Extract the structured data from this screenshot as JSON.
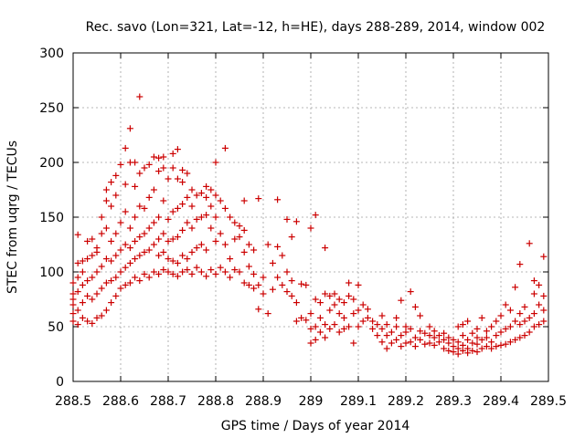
{
  "chart_data": {
    "type": "scatter",
    "title": "Rec. savo (Lon=321, Lat=-12, h=HE), days 288-289, 2014, window 002",
    "xlabel": "GPS time / Days of year 2014",
    "ylabel": "STEC from uqrg / TECUs",
    "xlim": [
      288.5,
      289.5
    ],
    "ylim": [
      0,
      300
    ],
    "xticks": [
      "288.5",
      "288.6",
      "288.7",
      "288.8",
      "288.9",
      "289",
      "289.1",
      "289.2",
      "289.3",
      "289.4",
      "289.5"
    ],
    "yticks": [
      "0",
      "50",
      "100",
      "150",
      "200",
      "250",
      "300"
    ],
    "grid": true,
    "marker": "+",
    "color": "#cc0000",
    "points": [
      [
        288.5,
        55
      ],
      [
        288.5,
        62
      ],
      [
        288.5,
        70
      ],
      [
        288.5,
        75
      ],
      [
        288.5,
        80
      ],
      [
        288.5,
        90
      ],
      [
        288.51,
        52
      ],
      [
        288.51,
        65
      ],
      [
        288.51,
        82
      ],
      [
        288.51,
        95
      ],
      [
        288.51,
        108
      ],
      [
        288.51,
        134
      ],
      [
        288.52,
        58
      ],
      [
        288.52,
        72
      ],
      [
        288.52,
        88
      ],
      [
        288.52,
        100
      ],
      [
        288.52,
        110
      ],
      [
        288.53,
        55
      ],
      [
        288.53,
        78
      ],
      [
        288.53,
        92
      ],
      [
        288.53,
        112
      ],
      [
        288.53,
        128
      ],
      [
        288.54,
        53
      ],
      [
        288.54,
        75
      ],
      [
        288.54,
        95
      ],
      [
        288.54,
        115
      ],
      [
        288.54,
        130
      ],
      [
        288.55,
        58
      ],
      [
        288.55,
        80
      ],
      [
        288.55,
        100
      ],
      [
        288.55,
        118
      ],
      [
        288.55,
        122
      ],
      [
        288.56,
        60
      ],
      [
        288.56,
        85
      ],
      [
        288.56,
        105
      ],
      [
        288.56,
        135
      ],
      [
        288.56,
        150
      ],
      [
        288.57,
        65
      ],
      [
        288.57,
        90
      ],
      [
        288.57,
        112
      ],
      [
        288.57,
        140
      ],
      [
        288.57,
        165
      ],
      [
        288.57,
        175
      ],
      [
        288.58,
        72
      ],
      [
        288.58,
        92
      ],
      [
        288.58,
        110
      ],
      [
        288.58,
        128
      ],
      [
        288.58,
        160
      ],
      [
        288.58,
        182
      ],
      [
        288.59,
        78
      ],
      [
        288.59,
        95
      ],
      [
        288.59,
        115
      ],
      [
        288.59,
        135
      ],
      [
        288.59,
        170
      ],
      [
        288.59,
        188
      ],
      [
        288.6,
        85
      ],
      [
        288.6,
        100
      ],
      [
        288.6,
        120
      ],
      [
        288.6,
        145
      ],
      [
        288.6,
        198
      ],
      [
        288.61,
        88
      ],
      [
        288.61,
        104
      ],
      [
        288.61,
        125
      ],
      [
        288.61,
        155
      ],
      [
        288.61,
        180
      ],
      [
        288.61,
        213
      ],
      [
        288.62,
        90
      ],
      [
        288.62,
        108
      ],
      [
        288.62,
        122
      ],
      [
        288.62,
        140
      ],
      [
        288.62,
        200
      ],
      [
        288.62,
        231
      ],
      [
        288.63,
        95
      ],
      [
        288.63,
        112
      ],
      [
        288.63,
        128
      ],
      [
        288.63,
        150
      ],
      [
        288.63,
        178
      ],
      [
        288.63,
        200
      ],
      [
        288.64,
        92
      ],
      [
        288.64,
        115
      ],
      [
        288.64,
        132
      ],
      [
        288.64,
        160
      ],
      [
        288.64,
        190
      ],
      [
        288.64,
        260
      ],
      [
        288.65,
        98
      ],
      [
        288.65,
        118
      ],
      [
        288.65,
        135
      ],
      [
        288.65,
        158
      ],
      [
        288.65,
        195
      ],
      [
        288.66,
        95
      ],
      [
        288.66,
        120
      ],
      [
        288.66,
        140
      ],
      [
        288.66,
        168
      ],
      [
        288.66,
        198
      ],
      [
        288.67,
        100
      ],
      [
        288.67,
        125
      ],
      [
        288.67,
        145
      ],
      [
        288.67,
        175
      ],
      [
        288.67,
        205
      ],
      [
        288.68,
        98
      ],
      [
        288.68,
        115
      ],
      [
        288.68,
        130
      ],
      [
        288.68,
        150
      ],
      [
        288.68,
        192
      ],
      [
        288.68,
        204
      ],
      [
        288.69,
        102
      ],
      [
        288.69,
        118
      ],
      [
        288.69,
        135
      ],
      [
        288.69,
        165
      ],
      [
        288.69,
        195
      ],
      [
        288.69,
        205
      ],
      [
        288.7,
        100
      ],
      [
        288.7,
        112
      ],
      [
        288.7,
        128
      ],
      [
        288.7,
        148
      ],
      [
        288.7,
        185
      ],
      [
        288.71,
        98
      ],
      [
        288.71,
        110
      ],
      [
        288.71,
        130
      ],
      [
        288.71,
        155
      ],
      [
        288.71,
        195
      ],
      [
        288.71,
        208
      ],
      [
        288.72,
        96
      ],
      [
        288.72,
        108
      ],
      [
        288.72,
        132
      ],
      [
        288.72,
        158
      ],
      [
        288.72,
        185
      ],
      [
        288.72,
        212
      ],
      [
        288.73,
        100
      ],
      [
        288.73,
        115
      ],
      [
        288.73,
        138
      ],
      [
        288.73,
        162
      ],
      [
        288.73,
        182
      ],
      [
        288.73,
        193
      ],
      [
        288.74,
        102
      ],
      [
        288.74,
        112
      ],
      [
        288.74,
        145
      ],
      [
        288.74,
        168
      ],
      [
        288.74,
        190
      ],
      [
        288.75,
        98
      ],
      [
        288.75,
        118
      ],
      [
        288.75,
        140
      ],
      [
        288.75,
        160
      ],
      [
        288.75,
        175
      ],
      [
        288.76,
        104
      ],
      [
        288.76,
        122
      ],
      [
        288.76,
        148
      ],
      [
        288.76,
        170
      ],
      [
        288.77,
        100
      ],
      [
        288.77,
        125
      ],
      [
        288.77,
        150
      ],
      [
        288.77,
        172
      ],
      [
        288.78,
        96
      ],
      [
        288.78,
        120
      ],
      [
        288.78,
        152
      ],
      [
        288.78,
        168
      ],
      [
        288.78,
        178
      ],
      [
        288.79,
        102
      ],
      [
        288.79,
        140
      ],
      [
        288.79,
        160
      ],
      [
        288.79,
        175
      ],
      [
        288.8,
        98
      ],
      [
        288.8,
        128
      ],
      [
        288.8,
        150
      ],
      [
        288.8,
        170
      ],
      [
        288.8,
        200
      ],
      [
        288.81,
        104
      ],
      [
        288.81,
        135
      ],
      [
        288.81,
        165
      ],
      [
        288.82,
        100
      ],
      [
        288.82,
        125
      ],
      [
        288.82,
        158
      ],
      [
        288.82,
        213
      ],
      [
        288.83,
        95
      ],
      [
        288.83,
        112
      ],
      [
        288.83,
        150
      ],
      [
        288.84,
        102
      ],
      [
        288.84,
        130
      ],
      [
        288.84,
        145
      ],
      [
        288.85,
        100
      ],
      [
        288.85,
        132
      ],
      [
        288.85,
        142
      ],
      [
        288.86,
        90
      ],
      [
        288.86,
        118
      ],
      [
        288.86,
        138
      ],
      [
        288.86,
        165
      ],
      [
        288.87,
        88
      ],
      [
        288.87,
        105
      ],
      [
        288.87,
        125
      ],
      [
        288.88,
        85
      ],
      [
        288.88,
        98
      ],
      [
        288.88,
        120
      ],
      [
        288.89,
        88
      ],
      [
        288.89,
        66
      ],
      [
        288.89,
        167
      ],
      [
        288.9,
        95
      ],
      [
        288.9,
        80
      ],
      [
        288.91,
        62
      ],
      [
        288.91,
        125
      ],
      [
        288.92,
        84
      ],
      [
        288.92,
        108
      ],
      [
        288.93,
        95
      ],
      [
        288.93,
        123
      ],
      [
        288.93,
        166
      ],
      [
        288.94,
        88
      ],
      [
        288.94,
        115
      ],
      [
        288.95,
        82
      ],
      [
        288.95,
        100
      ],
      [
        288.95,
        148
      ],
      [
        288.96,
        78
      ],
      [
        288.96,
        92
      ],
      [
        288.96,
        132
      ],
      [
        288.97,
        55
      ],
      [
        288.97,
        72
      ],
      [
        288.97,
        146
      ],
      [
        288.98,
        58
      ],
      [
        288.98,
        89
      ],
      [
        288.99,
        56
      ],
      [
        288.99,
        88
      ],
      [
        289.0,
        35
      ],
      [
        289.0,
        48
      ],
      [
        289.0,
        62
      ],
      [
        289.0,
        140
      ],
      [
        289.01,
        38
      ],
      [
        289.01,
        50
      ],
      [
        289.01,
        75
      ],
      [
        289.01,
        152
      ],
      [
        289.02,
        45
      ],
      [
        289.02,
        58
      ],
      [
        289.02,
        72
      ],
      [
        289.03,
        40
      ],
      [
        289.03,
        52
      ],
      [
        289.03,
        80
      ],
      [
        289.03,
        122
      ],
      [
        289.04,
        48
      ],
      [
        289.04,
        65
      ],
      [
        289.04,
        78
      ],
      [
        289.05,
        52
      ],
      [
        289.05,
        70
      ],
      [
        289.05,
        80
      ],
      [
        289.06,
        45
      ],
      [
        289.06,
        62
      ],
      [
        289.06,
        75
      ],
      [
        289.07,
        48
      ],
      [
        289.07,
        58
      ],
      [
        289.07,
        72
      ],
      [
        289.08,
        50
      ],
      [
        289.08,
        78
      ],
      [
        289.08,
        90
      ],
      [
        289.09,
        35
      ],
      [
        289.09,
        62
      ],
      [
        289.09,
        75
      ],
      [
        289.1,
        50
      ],
      [
        289.1,
        65
      ],
      [
        289.1,
        88
      ],
      [
        289.11,
        55
      ],
      [
        289.11,
        70
      ],
      [
        289.12,
        58
      ],
      [
        289.12,
        66
      ],
      [
        289.13,
        48
      ],
      [
        289.13,
        55
      ],
      [
        289.14,
        42
      ],
      [
        289.14,
        52
      ],
      [
        289.15,
        36
      ],
      [
        289.15,
        48
      ],
      [
        289.15,
        60
      ],
      [
        289.16,
        30
      ],
      [
        289.16,
        42
      ],
      [
        289.16,
        52
      ],
      [
        289.17,
        35
      ],
      [
        289.17,
        45
      ],
      [
        289.18,
        38
      ],
      [
        289.18,
        50
      ],
      [
        289.18,
        58
      ],
      [
        289.19,
        32
      ],
      [
        289.19,
        42
      ],
      [
        289.19,
        74
      ],
      [
        289.2,
        35
      ],
      [
        289.2,
        45
      ],
      [
        289.2,
        50
      ],
      [
        289.21,
        36
      ],
      [
        289.21,
        48
      ],
      [
        289.21,
        82
      ],
      [
        289.22,
        32
      ],
      [
        289.22,
        40
      ],
      [
        289.22,
        68
      ],
      [
        289.23,
        38
      ],
      [
        289.23,
        46
      ],
      [
        289.23,
        60
      ],
      [
        289.24,
        34
      ],
      [
        289.24,
        44
      ],
      [
        289.25,
        35
      ],
      [
        289.25,
        42
      ],
      [
        289.25,
        50
      ],
      [
        289.26,
        33
      ],
      [
        289.26,
        40
      ],
      [
        289.26,
        46
      ],
      [
        289.27,
        36
      ],
      [
        289.27,
        42
      ],
      [
        289.28,
        30
      ],
      [
        289.28,
        38
      ],
      [
        289.28,
        44
      ],
      [
        289.29,
        28
      ],
      [
        289.29,
        35
      ],
      [
        289.29,
        40
      ],
      [
        289.3,
        27
      ],
      [
        289.3,
        32
      ],
      [
        289.3,
        38
      ],
      [
        289.31,
        25
      ],
      [
        289.31,
        30
      ],
      [
        289.31,
        36
      ],
      [
        289.31,
        50
      ],
      [
        289.32,
        28
      ],
      [
        289.32,
        33
      ],
      [
        289.32,
        42
      ],
      [
        289.32,
        52
      ],
      [
        289.33,
        26
      ],
      [
        289.33,
        30
      ],
      [
        289.33,
        38
      ],
      [
        289.33,
        55
      ],
      [
        289.34,
        28
      ],
      [
        289.34,
        35
      ],
      [
        289.34,
        44
      ],
      [
        289.35,
        27
      ],
      [
        289.35,
        34
      ],
      [
        289.35,
        40
      ],
      [
        289.35,
        48
      ],
      [
        289.36,
        30
      ],
      [
        289.36,
        38
      ],
      [
        289.36,
        58
      ],
      [
        289.37,
        32
      ],
      [
        289.37,
        40
      ],
      [
        289.37,
        46
      ],
      [
        289.38,
        30
      ],
      [
        289.38,
        36
      ],
      [
        289.38,
        50
      ],
      [
        289.39,
        32
      ],
      [
        289.39,
        42
      ],
      [
        289.39,
        55
      ],
      [
        289.4,
        33
      ],
      [
        289.4,
        45
      ],
      [
        289.4,
        60
      ],
      [
        289.41,
        34
      ],
      [
        289.41,
        48
      ],
      [
        289.41,
        70
      ],
      [
        289.42,
        36
      ],
      [
        289.42,
        50
      ],
      [
        289.42,
        65
      ],
      [
        289.43,
        38
      ],
      [
        289.43,
        55
      ],
      [
        289.43,
        86
      ],
      [
        289.44,
        40
      ],
      [
        289.44,
        52
      ],
      [
        289.44,
        62
      ],
      [
        289.44,
        107
      ],
      [
        289.45,
        42
      ],
      [
        289.45,
        55
      ],
      [
        289.45,
        68
      ],
      [
        289.46,
        45
      ],
      [
        289.46,
        58
      ],
      [
        289.46,
        126
      ],
      [
        289.47,
        50
      ],
      [
        289.47,
        62
      ],
      [
        289.47,
        80
      ],
      [
        289.47,
        92
      ],
      [
        289.48,
        52
      ],
      [
        289.48,
        70
      ],
      [
        289.48,
        88
      ],
      [
        289.49,
        55
      ],
      [
        289.49,
        65
      ],
      [
        289.49,
        78
      ],
      [
        289.49,
        114
      ]
    ]
  }
}
